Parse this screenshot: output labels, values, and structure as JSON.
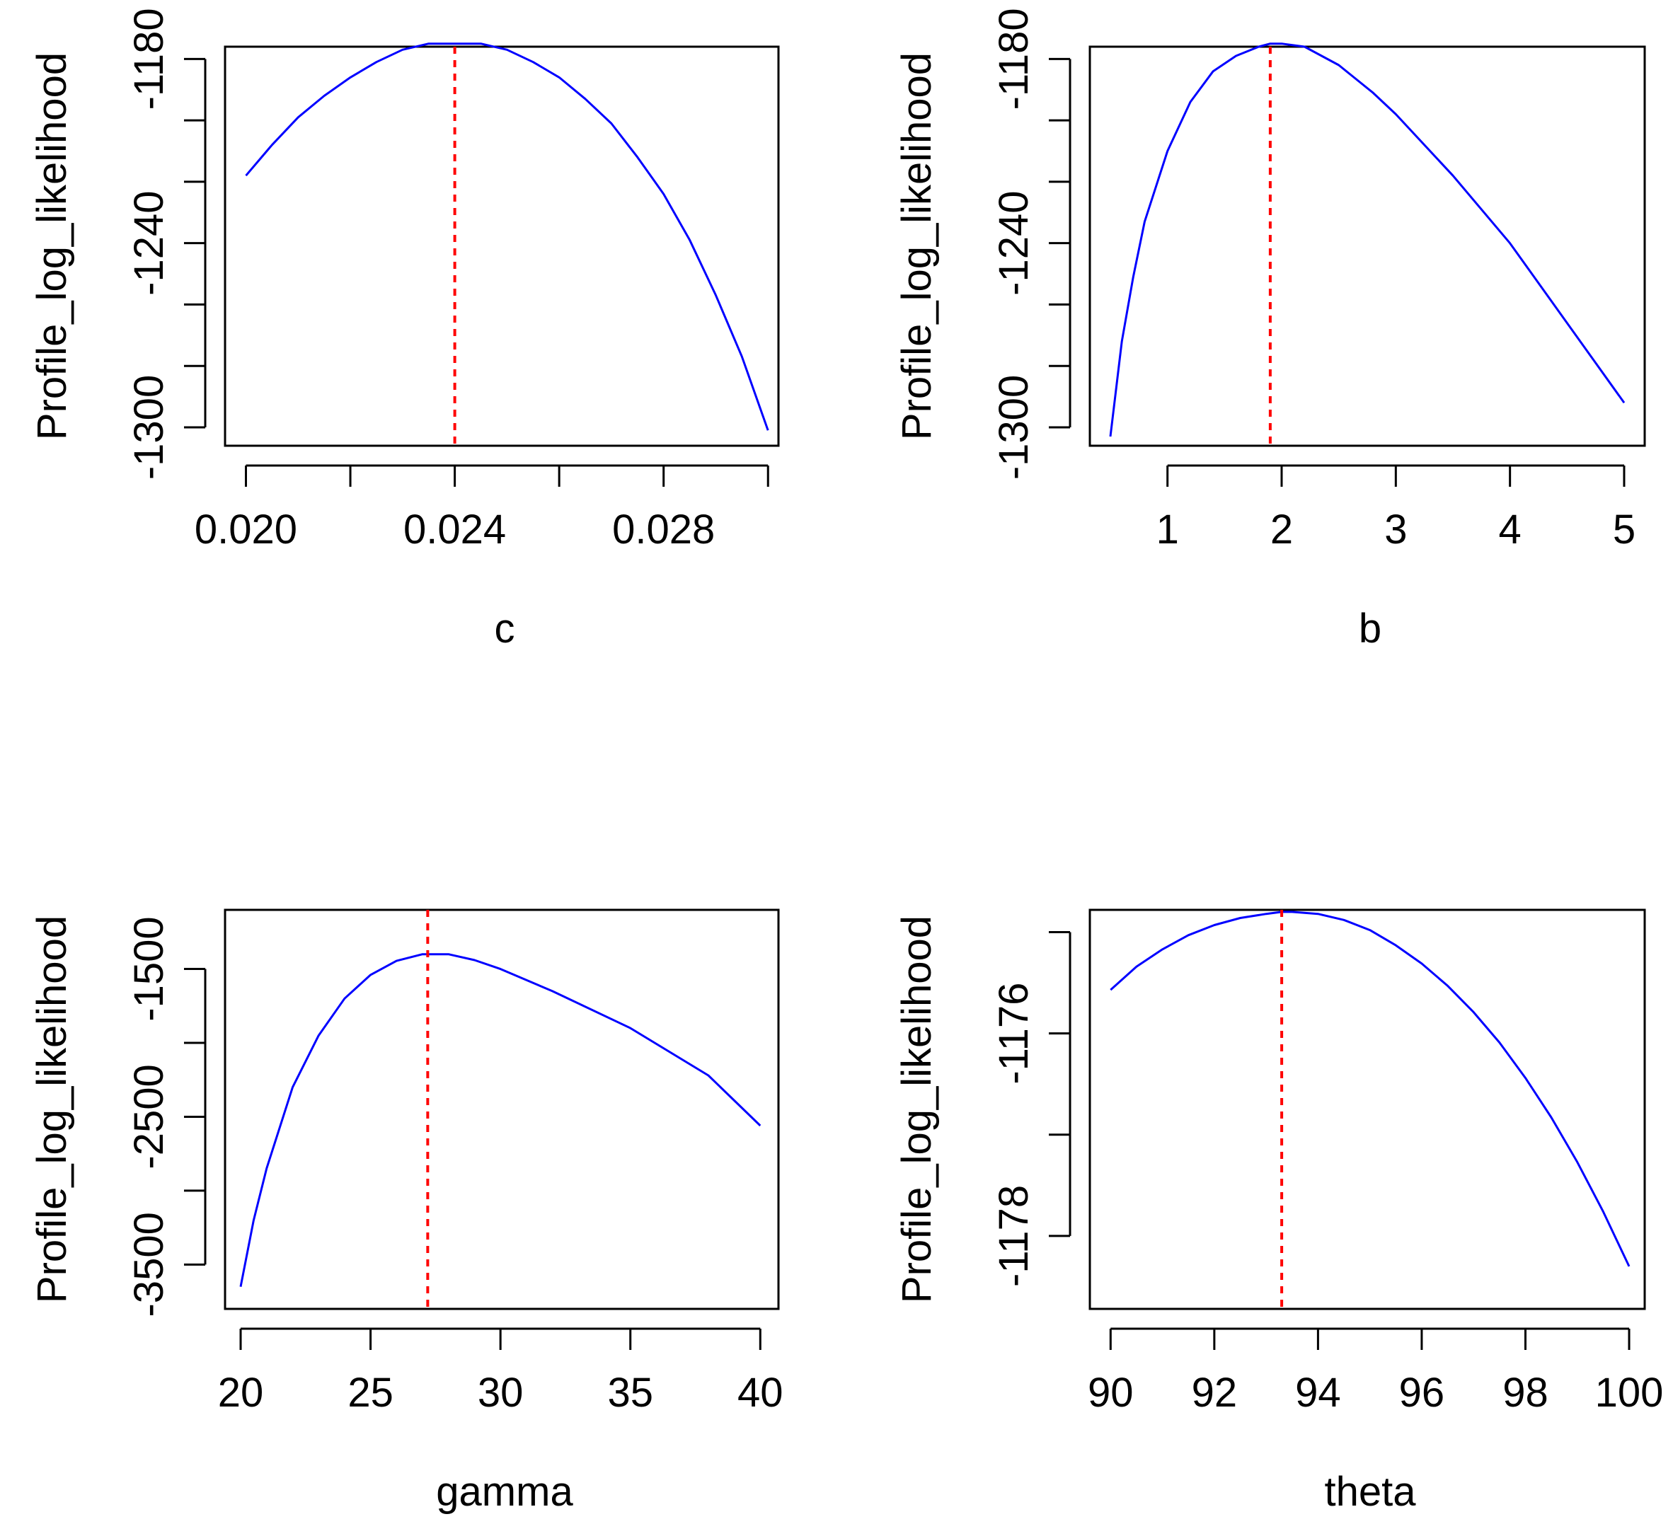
{
  "chart_data": [
    {
      "type": "line",
      "title": "",
      "xlabel": "c",
      "ylabel": "Profile_log_likelihood",
      "xlim": [
        0.0196,
        0.0302
      ],
      "ylim": [
        -1306,
        -1176
      ],
      "xticks": [
        0.02,
        0.022,
        0.024,
        0.026,
        0.028,
        0.03
      ],
      "xtick_labels": [
        "0.020",
        "",
        "0.024",
        "",
        "0.028",
        ""
      ],
      "yticks": [
        -1180,
        -1200,
        -1220,
        -1240,
        -1260,
        -1280,
        -1300
      ],
      "ytick_labels": [
        "-1180",
        "",
        "",
        "-1240",
        "",
        "",
        "-1300"
      ],
      "vline": 0.024,
      "line_color": "#0000ff",
      "vline_color": "#ff0000",
      "series": [
        {
          "name": "profile",
          "x": [
            0.02,
            0.0205,
            0.021,
            0.0215,
            0.022,
            0.0225,
            0.023,
            0.0235,
            0.024,
            0.0245,
            0.025,
            0.0255,
            0.026,
            0.0265,
            0.027,
            0.0275,
            0.028,
            0.0285,
            0.029,
            0.0295,
            0.03
          ],
          "y": [
            -1218,
            -1208,
            -1199,
            -1192,
            -1186,
            -1181,
            -1177,
            -1175,
            -1175,
            -1175,
            -1177,
            -1181,
            -1186,
            -1193,
            -1201,
            -1212,
            -1224,
            -1239,
            -1257,
            -1277,
            -1301
          ]
        }
      ]
    },
    {
      "type": "line",
      "title": "",
      "xlabel": "b",
      "ylabel": "Profile_log_likelihood",
      "xlim": [
        0.32,
        5.18
      ],
      "ylim": [
        -1306,
        -1176
      ],
      "xticks": [
        1,
        2,
        3,
        4,
        5
      ],
      "xtick_labels": [
        "1",
        "2",
        "3",
        "4",
        "5"
      ],
      "yticks": [
        -1180,
        -1200,
        -1220,
        -1240,
        -1260,
        -1280,
        -1300
      ],
      "ytick_labels": [
        "-1180",
        "",
        "",
        "-1240",
        "",
        "",
        "-1300"
      ],
      "vline": 1.9,
      "line_color": "#0000ff",
      "vline_color": "#ff0000",
      "series": [
        {
          "name": "profile",
          "x": [
            0.5,
            0.6,
            0.7,
            0.8,
            1.0,
            1.2,
            1.4,
            1.6,
            1.8,
            1.9,
            2.0,
            2.2,
            2.5,
            2.8,
            3.0,
            3.5,
            4.0,
            4.5,
            5.0
          ],
          "y": [
            -1303,
            -1272,
            -1251,
            -1233,
            -1210,
            -1194,
            -1184,
            -1179,
            -1176,
            -1175,
            -1175,
            -1176,
            -1182,
            -1191,
            -1198,
            -1218,
            -1240,
            -1266,
            -1292
          ]
        }
      ]
    },
    {
      "type": "line",
      "title": "",
      "xlabel": "gamma",
      "ylabel": "Profile_log_likelihood",
      "xlim": [
        19.4,
        40.7
      ],
      "ylim": [
        -3800,
        -1100
      ],
      "xticks": [
        20,
        25,
        30,
        35,
        40
      ],
      "xtick_labels": [
        "20",
        "25",
        "30",
        "35",
        "40"
      ],
      "yticks": [
        -1500,
        -2000,
        -2500,
        -3000,
        -3500
      ],
      "ytick_labels": [
        "-1500",
        "",
        "-2500",
        "",
        "-3500"
      ],
      "vline": 27.2,
      "line_color": "#0000ff",
      "vline_color": "#ff0000",
      "series": [
        {
          "name": "profile",
          "x": [
            20,
            20.5,
            21,
            22,
            23,
            24,
            25,
            26,
            27,
            28,
            29,
            30,
            32,
            35,
            38,
            40
          ],
          "y": [
            -3650,
            -3200,
            -2850,
            -2300,
            -1950,
            -1700,
            -1540,
            -1445,
            -1400,
            -1400,
            -1440,
            -1500,
            -1650,
            -1900,
            -2220,
            -2560
          ]
        }
      ]
    },
    {
      "type": "line",
      "title": "",
      "xlabel": "theta",
      "ylabel": "Profile_log_likelihood",
      "xlim": [
        89.6,
        100.3
      ],
      "ylim": [
        -1178.72,
        -1174.78
      ],
      "xticks": [
        90,
        92,
        94,
        96,
        98,
        100
      ],
      "xtick_labels": [
        "90",
        "92",
        "94",
        "96",
        "98",
        "100"
      ],
      "yticks": [
        -1175,
        -1176,
        -1177,
        -1178
      ],
      "ytick_labels": [
        "",
        "-1176",
        "",
        "-1178"
      ],
      "vline": 93.3,
      "line_color": "#0000ff",
      "vline_color": "#ff0000",
      "series": [
        {
          "name": "profile",
          "x": [
            90,
            90.5,
            91,
            91.5,
            92,
            92.5,
            93,
            93.3,
            93.5,
            94,
            94.5,
            95,
            95.5,
            96,
            96.5,
            97,
            97.5,
            98,
            98.5,
            99,
            99.5,
            100
          ],
          "y": [
            -1175.57,
            -1175.34,
            -1175.17,
            -1175.03,
            -1174.93,
            -1174.86,
            -1174.82,
            -1174.8,
            -1174.8,
            -1174.82,
            -1174.88,
            -1174.98,
            -1175.13,
            -1175.31,
            -1175.53,
            -1175.79,
            -1176.09,
            -1176.44,
            -1176.83,
            -1177.27,
            -1177.76,
            -1178.3
          ]
        }
      ]
    }
  ]
}
